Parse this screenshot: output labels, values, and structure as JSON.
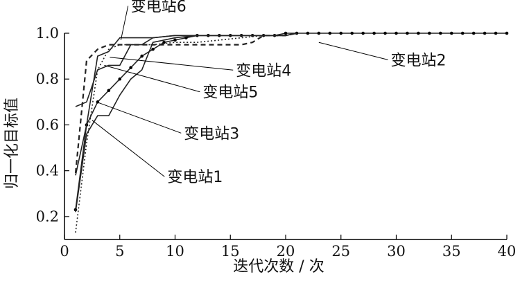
{
  "chart_data": {
    "type": "line",
    "title": "",
    "xlabel": "迭代次数 / 次",
    "ylabel": "归一化目标值",
    "xlim": [
      0,
      40
    ],
    "ylim": [
      0.1,
      1.0
    ],
    "x_ticks": [
      0,
      5,
      10,
      15,
      20,
      25,
      30,
      35,
      40
    ],
    "y_ticks": [
      0.2,
      0.4,
      0.6,
      0.8,
      1.0
    ],
    "x_tick_labels": [
      "0",
      "5",
      "10",
      "15",
      "20",
      "25",
      "30",
      "35",
      "40"
    ],
    "y_tick_labels": [
      "0.2",
      "0.4",
      "0.6",
      "0.8",
      "1.0"
    ],
    "grid": false,
    "series": [
      {
        "name": "变电站1",
        "style": "solid",
        "marker": "dot",
        "points": [
          [
            1,
            0.23
          ],
          [
            2,
            0.6
          ],
          [
            3,
            0.7
          ],
          [
            4,
            0.75
          ],
          [
            5,
            0.8
          ],
          [
            6,
            0.85
          ],
          [
            7,
            0.9
          ],
          [
            8,
            0.93
          ],
          [
            9,
            0.96
          ],
          [
            10,
            0.97
          ],
          [
            11,
            0.98
          ],
          [
            12,
            0.99
          ],
          [
            13,
            0.99
          ],
          [
            14,
            0.99
          ],
          [
            15,
            0.99
          ],
          [
            16,
            0.99
          ],
          [
            17,
            0.99
          ],
          [
            18,
            0.99
          ],
          [
            19,
            0.99
          ],
          [
            20,
            1.0
          ],
          [
            21,
            1.0
          ],
          [
            22,
            1.0
          ],
          [
            23,
            1.0
          ],
          [
            24,
            1.0
          ],
          [
            25,
            1.0
          ],
          [
            26,
            1.0
          ],
          [
            27,
            1.0
          ],
          [
            28,
            1.0
          ],
          [
            29,
            1.0
          ],
          [
            30,
            1.0
          ],
          [
            31,
            1.0
          ],
          [
            32,
            1.0
          ],
          [
            33,
            1.0
          ],
          [
            34,
            1.0
          ],
          [
            35,
            1.0
          ],
          [
            36,
            1.0
          ],
          [
            37,
            1.0
          ],
          [
            38,
            1.0
          ],
          [
            39,
            1.0
          ],
          [
            40,
            1.0
          ]
        ]
      },
      {
        "name": "变电站2",
        "style": "dashed",
        "marker": "none",
        "points": [
          [
            1,
            0.39
          ],
          [
            2,
            0.88
          ],
          [
            3,
            0.93
          ],
          [
            4,
            0.95
          ],
          [
            6,
            0.95
          ],
          [
            8,
            0.95
          ],
          [
            10,
            0.95
          ],
          [
            12,
            0.95
          ],
          [
            14,
            0.95
          ],
          [
            16,
            0.95
          ],
          [
            17,
            0.96
          ],
          [
            18,
            0.99
          ],
          [
            20,
            0.99
          ],
          [
            21,
            1.0
          ]
        ]
      },
      {
        "name": "变电站3",
        "style": "solid",
        "marker": "none",
        "points": [
          [
            1,
            0.22
          ],
          [
            2,
            0.56
          ],
          [
            3,
            0.64
          ],
          [
            4,
            0.64
          ],
          [
            5,
            0.73
          ],
          [
            6,
            0.8
          ],
          [
            7,
            0.84
          ],
          [
            8,
            0.96
          ],
          [
            10,
            0.98
          ],
          [
            12,
            0.99
          ],
          [
            14,
            0.99
          ],
          [
            16,
            0.99
          ],
          [
            18,
            0.99
          ],
          [
            20,
            0.99
          ],
          [
            21,
            1.0
          ]
        ]
      },
      {
        "name": "变电站4",
        "style": "solid",
        "marker": "none",
        "points": [
          [
            1,
            0.68
          ],
          [
            2,
            0.7
          ],
          [
            3,
            0.84
          ],
          [
            4,
            0.86
          ],
          [
            5,
            0.86
          ],
          [
            6,
            0.95
          ],
          [
            7,
            0.95
          ],
          [
            8,
            0.98
          ],
          [
            10,
            0.99
          ],
          [
            12,
            0.99
          ],
          [
            14,
            0.99
          ],
          [
            16,
            0.99
          ],
          [
            18,
            0.99
          ],
          [
            20,
            0.99
          ],
          [
            21,
            1.0
          ]
        ]
      },
      {
        "name": "变电站5",
        "style": "dotted",
        "marker": "none",
        "points": [
          [
            1,
            0.13
          ],
          [
            2,
            0.52
          ],
          [
            3,
            0.84
          ],
          [
            4,
            0.93
          ],
          [
            5,
            0.95
          ],
          [
            6,
            0.95
          ],
          [
            8,
            0.95
          ],
          [
            10,
            0.96
          ],
          [
            12,
            0.96
          ],
          [
            14,
            0.97
          ],
          [
            16,
            0.98
          ],
          [
            18,
            0.99
          ],
          [
            20,
            0.99
          ],
          [
            21,
            1.0
          ]
        ]
      },
      {
        "name": "变电站6",
        "style": "solid",
        "marker": "none",
        "points": [
          [
            1,
            0.38
          ],
          [
            2,
            0.6
          ],
          [
            3,
            0.9
          ],
          [
            4,
            0.92
          ],
          [
            5,
            0.98
          ],
          [
            6,
            0.98
          ],
          [
            8,
            0.98
          ],
          [
            10,
            0.99
          ],
          [
            12,
            0.99
          ],
          [
            14,
            0.99
          ],
          [
            16,
            0.99
          ],
          [
            18,
            0.99
          ],
          [
            20,
            0.99
          ],
          [
            21,
            1.0
          ]
        ]
      }
    ],
    "annotations": [
      {
        "id": "label-6",
        "text": "变电站6",
        "x": 6.0,
        "y": 1.095,
        "arrow_to": [
          5.1,
          0.97
        ]
      },
      {
        "id": "label-2",
        "text": "变电站2",
        "x": 29.5,
        "y": 0.86,
        "arrow_to": [
          23.0,
          0.96
        ]
      },
      {
        "id": "label-4",
        "text": "变电站4",
        "x": 15.5,
        "y": 0.815,
        "arrow_to": [
          4.1,
          0.895
        ]
      },
      {
        "id": "label-5",
        "text": "变电站5",
        "x": 12.5,
        "y": 0.72,
        "arrow_to": [
          3.6,
          0.86
        ]
      },
      {
        "id": "label-3",
        "text": "变电站3",
        "x": 10.8,
        "y": 0.54,
        "arrow_to": [
          2.9,
          0.7
        ]
      },
      {
        "id": "label-1",
        "text": "变电站1",
        "x": 9.3,
        "y": 0.35,
        "arrow_to": [
          2.5,
          0.62
        ]
      }
    ]
  }
}
